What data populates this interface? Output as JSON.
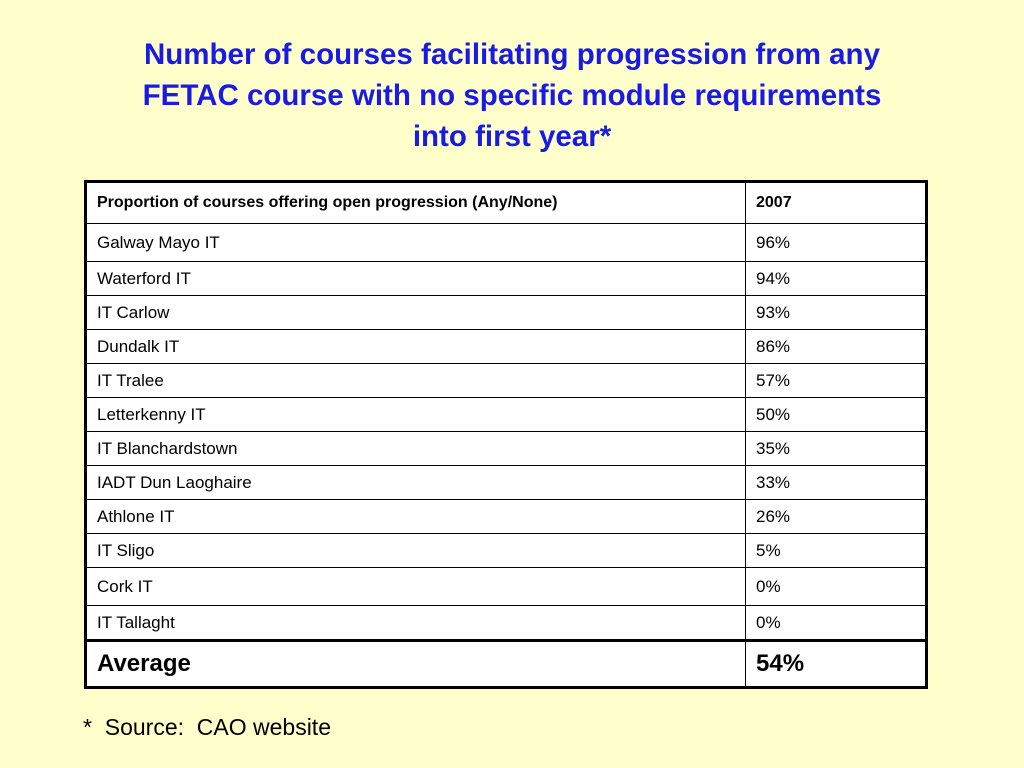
{
  "title": {
    "line1": "Number of courses facilitating progression from any",
    "line2": "FETAC course with no specific module requirements",
    "line3": "into first year*"
  },
  "table": {
    "header": {
      "label": "Proportion of courses offering open progression (Any/None)",
      "year": "2007"
    },
    "rows": [
      {
        "institution": "Galway Mayo IT",
        "value": "96%"
      },
      {
        "institution": "Waterford IT",
        "value": "94%"
      },
      {
        "institution": "IT Carlow",
        "value": "93%"
      },
      {
        "institution": "Dundalk IT",
        "value": "86%"
      },
      {
        "institution": "IT Tralee",
        "value": "57%"
      },
      {
        "institution": "Letterkenny IT",
        "value": "50%"
      },
      {
        "institution": "IT Blanchardstown",
        "value": "35%"
      },
      {
        "institution": "IADT Dun Laoghaire",
        "value": "33%"
      },
      {
        "institution": "Athlone IT",
        "value": "26%"
      },
      {
        "institution": "IT Sligo",
        "value": "5%"
      },
      {
        "institution": "Cork IT",
        "value": "0%"
      },
      {
        "institution": "IT Tallaght",
        "value": "0%"
      }
    ],
    "average": {
      "label": "Average",
      "value": "54%"
    }
  },
  "footnote": "*  Source:  CAO website",
  "colors": {
    "background": "#FFFFCC",
    "title": "#1A1AE6",
    "cell_background": "#FFFFFF",
    "border": "#000000"
  }
}
